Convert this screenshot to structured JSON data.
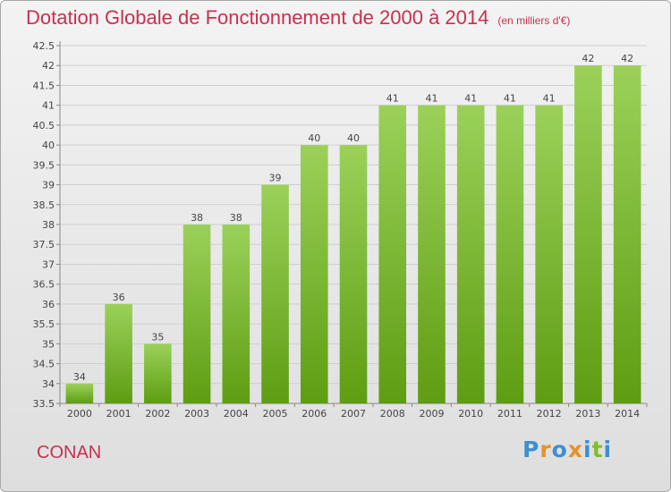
{
  "header": {
    "title": "Dotation Globale de Fonctionnement de 2000 à 2014",
    "subtitle": "(en milliers d'€)"
  },
  "footer": {
    "city": "CONAN",
    "logo": "Proxiti"
  },
  "colors": {
    "title": "#c8304f",
    "bar_top": "#9bd15a",
    "bar_bottom": "#5e9d12",
    "logo_letters": [
      "#3f8fd0",
      "#e8912a",
      "#3f8fd0",
      "#e8912a",
      "#3f8fd0",
      "#7fbf2e",
      "#3f8fd0"
    ]
  },
  "chart_data": {
    "type": "bar",
    "title": "Dotation Globale de Fonctionnement de 2000 à 2014",
    "subtitle": "(en milliers d'€)",
    "categories": [
      "2000",
      "2001",
      "2002",
      "2003",
      "2004",
      "2005",
      "2006",
      "2007",
      "2008",
      "2009",
      "2010",
      "2011",
      "2012",
      "2013",
      "2014"
    ],
    "values": [
      34,
      36,
      35,
      38,
      38,
      39,
      40,
      40,
      41,
      41,
      41,
      41,
      41,
      42,
      42
    ],
    "data_labels": [
      "34",
      "36",
      "35",
      "38",
      "38",
      "39",
      "40",
      "40",
      "41",
      "41",
      "41",
      "41",
      "41",
      "42",
      "42"
    ],
    "yticks": [
      "33.5",
      "34",
      "34.5",
      "35",
      "35.5",
      "36",
      "36.5",
      "37",
      "37.5",
      "38",
      "38.5",
      "39",
      "39.5",
      "40",
      "40.5",
      "41",
      "41.5",
      "42",
      "42.5"
    ],
    "ylim": [
      33.5,
      42.5
    ],
    "xlabel": "",
    "ylabel": "",
    "grid": true,
    "legend": "none"
  }
}
